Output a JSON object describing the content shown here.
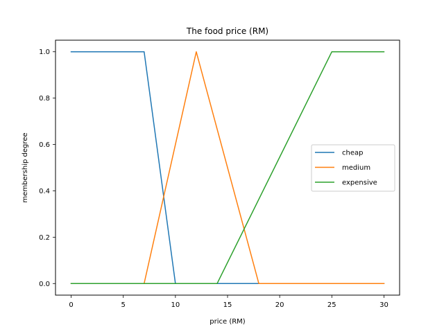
{
  "chart_data": {
    "type": "line",
    "title": "The food price (RM)",
    "xlabel": "price (RM)",
    "ylabel": "membership degree",
    "xlim": [
      -1.5,
      31.5
    ],
    "ylim": [
      -0.05,
      1.05
    ],
    "xticks": [
      0,
      5,
      10,
      15,
      20,
      25,
      30
    ],
    "xtick_labels": [
      "0",
      "5",
      "10",
      "15",
      "20",
      "25",
      "30"
    ],
    "yticks": [
      0.0,
      0.2,
      0.4,
      0.6,
      0.8,
      1.0
    ],
    "ytick_labels": [
      "0.0",
      "0.2",
      "0.4",
      "0.6",
      "0.8",
      "1.0"
    ],
    "grid": false,
    "legend_position": "center-right",
    "series": [
      {
        "name": "cheap",
        "color": "#1f77b4",
        "x": [
          0,
          7,
          10,
          30
        ],
        "y": [
          1.0,
          1.0,
          0.0,
          0.0
        ]
      },
      {
        "name": "medium",
        "color": "#ff7f0e",
        "x": [
          0,
          7,
          12,
          18,
          30
        ],
        "y": [
          0.0,
          0.0,
          1.0,
          0.0,
          0.0
        ]
      },
      {
        "name": "expensive",
        "color": "#2ca02c",
        "x": [
          0,
          14,
          25,
          30
        ],
        "y": [
          0.0,
          0.0,
          1.0,
          1.0
        ]
      }
    ]
  }
}
